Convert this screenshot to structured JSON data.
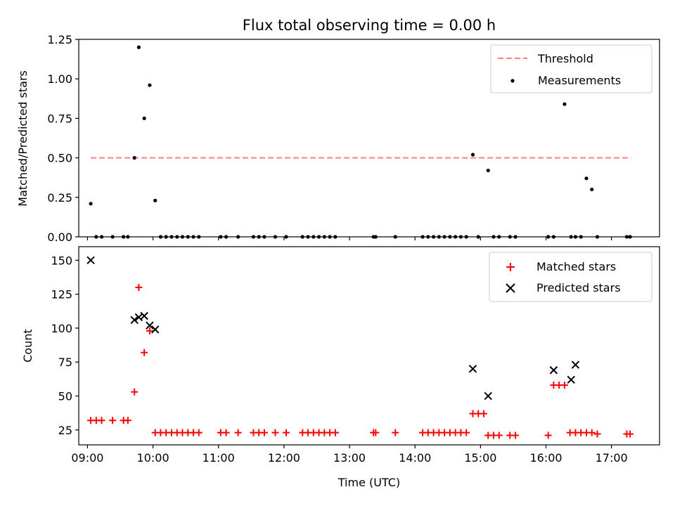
{
  "chart_data": [
    {
      "type": "scatter",
      "title": "Flux total observing time = 0.00 h",
      "xlabel": "",
      "ylabel": "Matched/Predicted stars",
      "xlim": [
        "08:52",
        "17:44"
      ],
      "ylim": [
        0,
        1.25
      ],
      "yticks": [
        0,
        0.25,
        0.5,
        0.75,
        1.0,
        1.25
      ],
      "ytick_labels": [
        "0.00",
        "0.25",
        "0.50",
        "0.75",
        "1.00",
        "1.25"
      ],
      "legend_position": "top-right",
      "legend": [
        "Threshold",
        "Measurements"
      ],
      "threshold": {
        "name": "Threshold",
        "y": 0.5,
        "x_start": "09:03",
        "x_end": "17:18",
        "color": "#ff7f7f",
        "style": "dashed"
      },
      "series": [
        {
          "name": "Measurements",
          "marker": "dot",
          "color": "#000000",
          "x": [
            "09:03",
            "09:08",
            "09:13",
            "09:23",
            "09:33",
            "09:37",
            "09:43",
            "09:47",
            "09:52",
            "09:57",
            "10:02",
            "10:07",
            "10:12",
            "10:17",
            "10:22",
            "10:27",
            "10:32",
            "10:37",
            "10:42",
            "11:02",
            "11:07",
            "11:18",
            "11:32",
            "11:37",
            "11:42",
            "11:52",
            "12:02",
            "12:17",
            "12:22",
            "12:27",
            "12:32",
            "12:37",
            "12:42",
            "12:47",
            "13:22",
            "13:24",
            "13:42",
            "14:07",
            "14:12",
            "14:17",
            "14:22",
            "14:27",
            "14:32",
            "14:37",
            "14:42",
            "14:47",
            "14:53",
            "14:58",
            "15:07",
            "15:12",
            "15:17",
            "15:27",
            "15:32",
            "16:02",
            "16:07",
            "16:17",
            "16:23",
            "16:27",
            "16:32",
            "16:37",
            "16:42",
            "16:47",
            "17:14",
            "17:17"
          ],
          "y": [
            0.21,
            0,
            0,
            0,
            0,
            0,
            0.5,
            1.2,
            0.75,
            0.96,
            0.23,
            0,
            0,
            0,
            0,
            0,
            0,
            0,
            0,
            0,
            0,
            0,
            0,
            0,
            0,
            0,
            0,
            0,
            0,
            0,
            0,
            0,
            0,
            0,
            0,
            0,
            0,
            0,
            0,
            0,
            0,
            0,
            0,
            0,
            0,
            0,
            0.52,
            0,
            0.42,
            0,
            0,
            0,
            0,
            0,
            0,
            0.84,
            0,
            0,
            0,
            0.37,
            0.3,
            0,
            0,
            0
          ]
        }
      ]
    },
    {
      "type": "scatter",
      "title": "",
      "xlabel": "Time (UTC)",
      "ylabel": "Count",
      "xlim": [
        "08:52",
        "17:44"
      ],
      "ylim": [
        14,
        160
      ],
      "yticks": [
        25,
        50,
        75,
        100,
        125,
        150
      ],
      "ytick_labels": [
        "25",
        "50",
        "75",
        "100",
        "125",
        "150"
      ],
      "xticks": [
        "09:00",
        "10:00",
        "11:00",
        "12:00",
        "13:00",
        "14:00",
        "15:00",
        "16:00",
        "17:00"
      ],
      "xtick_labels": [
        "09:00",
        "10:00",
        "11:00",
        "12:00",
        "13:00",
        "14:00",
        "15:00",
        "16:00",
        "17:00"
      ],
      "legend_position": "top-right",
      "legend": [
        "Matched stars",
        "Predicted stars"
      ],
      "series": [
        {
          "name": "Matched stars",
          "marker": "plus",
          "color": "#ff0000",
          "x": [
            "09:03",
            "09:08",
            "09:13",
            "09:23",
            "09:33",
            "09:37",
            "09:43",
            "09:47",
            "09:52",
            "09:57",
            "10:02",
            "10:07",
            "10:12",
            "10:17",
            "10:22",
            "10:27",
            "10:32",
            "10:37",
            "10:42",
            "11:02",
            "11:07",
            "11:18",
            "11:32",
            "11:37",
            "11:42",
            "11:52",
            "12:02",
            "12:17",
            "12:22",
            "12:27",
            "12:32",
            "12:37",
            "12:42",
            "12:47",
            "13:22",
            "13:24",
            "13:42",
            "14:07",
            "14:12",
            "14:17",
            "14:22",
            "14:27",
            "14:32",
            "14:37",
            "14:42",
            "14:47",
            "14:53",
            "14:58",
            "15:03",
            "15:07",
            "15:12",
            "15:17",
            "15:27",
            "15:32",
            "16:02",
            "16:07",
            "16:12",
            "16:17",
            "16:22",
            "16:27",
            "16:32",
            "16:37",
            "16:42",
            "16:47",
            "17:14",
            "17:17"
          ],
          "y": [
            32,
            32,
            32,
            32,
            32,
            32,
            53,
            130,
            82,
            98,
            23,
            23,
            23,
            23,
            23,
            23,
            23,
            23,
            23,
            23,
            23,
            23,
            23,
            23,
            23,
            23,
            23,
            23,
            23,
            23,
            23,
            23,
            23,
            23,
            23,
            23,
            23,
            23,
            23,
            23,
            23,
            23,
            23,
            23,
            23,
            23,
            37,
            37,
            37,
            21,
            21,
            21,
            21,
            21,
            21,
            58,
            58,
            58,
            23,
            23,
            23,
            23,
            23,
            22,
            22,
            22
          ]
        },
        {
          "name": "Predicted stars",
          "marker": "x",
          "color": "#000000",
          "x": [
            "09:03",
            "09:43",
            "09:47",
            "09:52",
            "09:57",
            "10:02",
            "14:53",
            "15:07",
            "16:07",
            "16:23",
            "16:27"
          ],
          "y": [
            150,
            106,
            108,
            109,
            102,
            99,
            70,
            50,
            69,
            62,
            73
          ]
        }
      ]
    }
  ]
}
